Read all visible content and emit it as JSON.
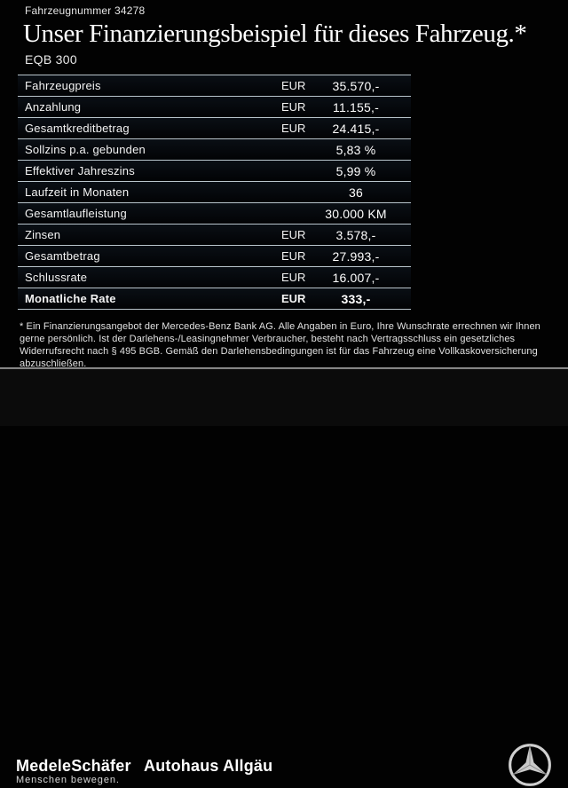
{
  "header": {
    "vehicle_number": "Fahrzeugnummer 34278",
    "title": "Unser Finanzierungsbeispiel für dieses Fahrzeug.*",
    "model": "EQB 300"
  },
  "table": {
    "rows": [
      {
        "label": "Fahrzeugpreis",
        "currency": "EUR",
        "value": "35.570,-",
        "bold": false
      },
      {
        "label": "Anzahlung",
        "currency": "EUR",
        "value": "11.155,-",
        "bold": false
      },
      {
        "label": "Gesamtkreditbetrag",
        "currency": "EUR",
        "value": "24.415,-",
        "bold": false
      },
      {
        "label": "Sollzins p.a. gebunden",
        "currency": "",
        "value": "5,83 %",
        "bold": false
      },
      {
        "label": "Effektiver Jahreszins",
        "currency": "",
        "value": "5,99 %",
        "bold": false
      },
      {
        "label": "Laufzeit in Monaten",
        "currency": "",
        "value": "36",
        "bold": false
      },
      {
        "label": "Gesamtlaufleistung",
        "currency": "",
        "value": "30.000 KM",
        "bold": false
      },
      {
        "label": "Zinsen",
        "currency": "EUR",
        "value": "3.578,-",
        "bold": false
      },
      {
        "label": "Gesamtbetrag",
        "currency": "EUR",
        "value": "27.993,-",
        "bold": false
      },
      {
        "label": "Schlussrate",
        "currency": "EUR",
        "value": "16.007,-",
        "bold": false
      },
      {
        "label": "Monatliche Rate",
        "currency": "EUR",
        "value": "333,-",
        "bold": true
      }
    ]
  },
  "footnote": "* Ein Finanzierungsangebot der Mercedes-Benz Bank AG. Alle Angaben in Euro, Ihre Wunschrate errechnen wir Ihnen gerne persönlich. Ist der Darlehens-/Leasingnehmer Verbraucher, besteht nach Vertragsschluss ein gesetzliches Widerrufsrecht nach § 495 BGB. Gemäß den Darlehensbedingungen ist für das Fahrzeug eine Vollkaskoversicherung abzuschließen.",
  "footer": {
    "dealer_logo": "MedeleSchäfer",
    "dealer_tagline": "Menschen bewegen.",
    "dealer_secondary": "Autohaus Allgäu",
    "brand_icon": "mercedes-star-icon"
  },
  "colors": {
    "background": "#020202",
    "row_separator": "#b9c5cc",
    "text": "#f2f2f2",
    "footer_background": "#0b0b0b",
    "star_silver": "#c9c9c9"
  }
}
